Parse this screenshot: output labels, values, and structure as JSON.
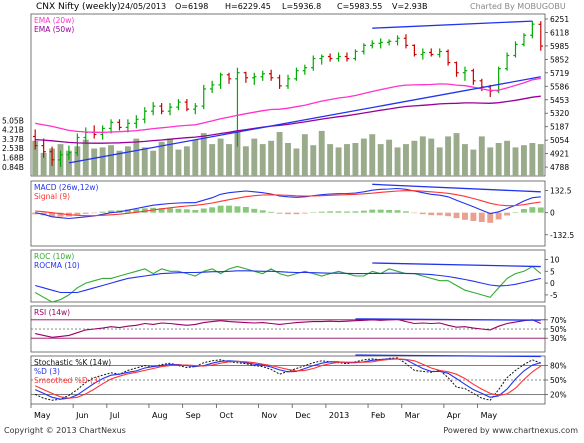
{
  "header": {
    "symbol": "CNX Nifty (weekly)",
    "date": "24/05/2013",
    "open": "O=6198",
    "high": "H=6229.45",
    "low": "L=5936.8",
    "close": "C=5983.55",
    "volume": "V=2.93B",
    "charted_by": "Charted By MOBUGOBU"
  },
  "footer": {
    "copyright": "Copyright © 2013 ChartNexus",
    "powered_by": "Powered by www.chartnexus.com"
  },
  "x_labels": [
    "May",
    "Jun",
    "Jul",
    "Aug",
    "Sep",
    "Oct",
    "Nov",
    "Dec",
    "2013",
    "Feb",
    "Mar",
    "Apr",
    "May"
  ],
  "colors": {
    "up": "#00aa00",
    "down": "#cc0000",
    "ema20": "#ff33cc",
    "ema50": "#990099",
    "trend": "#2233ee",
    "volume": "#9aab8c",
    "macd": "#2233ee",
    "signal": "#ff3333",
    "roc": "#33aa33",
    "rocma": "#2233ee",
    "rsi": "#990066",
    "stoch_k": "#111111",
    "stoch_d": "#2233ee",
    "stoch_smooth": "#ff3333"
  },
  "chart_data": [
    {
      "type": "candlestick",
      "name": "price",
      "legend": [
        "EMA (20w)",
        "EMA (50w)"
      ],
      "y_ticks": [
        4788,
        4921,
        5054,
        5187,
        5320,
        5453,
        5586,
        5719,
        5852,
        5985,
        6118,
        6251
      ],
      "ylim": [
        4700,
        6300
      ],
      "candles": [
        {
          "o": 5090,
          "h": 5160,
          "l": 4960,
          "c": 5000
        },
        {
          "o": 5000,
          "h": 5070,
          "l": 4880,
          "c": 4940
        },
        {
          "o": 4940,
          "h": 4990,
          "l": 4800,
          "c": 4860
        },
        {
          "o": 4860,
          "h": 4950,
          "l": 4790,
          "c": 4910
        },
        {
          "o": 4910,
          "h": 5000,
          "l": 4860,
          "c": 4930
        },
        {
          "o": 4930,
          "h": 5120,
          "l": 4900,
          "c": 5080
        },
        {
          "o": 5080,
          "h": 5180,
          "l": 5020,
          "c": 5130
        },
        {
          "o": 5130,
          "h": 5200,
          "l": 5070,
          "c": 5110
        },
        {
          "o": 5110,
          "h": 5200,
          "l": 5060,
          "c": 5170
        },
        {
          "o": 5170,
          "h": 5260,
          "l": 5120,
          "c": 5230
        },
        {
          "o": 5230,
          "h": 5260,
          "l": 5150,
          "c": 5180
        },
        {
          "o": 5180,
          "h": 5260,
          "l": 5130,
          "c": 5220
        },
        {
          "o": 5220,
          "h": 5300,
          "l": 5170,
          "c": 5260
        },
        {
          "o": 5260,
          "h": 5380,
          "l": 5220,
          "c": 5340
        },
        {
          "o": 5340,
          "h": 5430,
          "l": 5300,
          "c": 5390
        },
        {
          "o": 5390,
          "h": 5420,
          "l": 5310,
          "c": 5340
        },
        {
          "o": 5340,
          "h": 5420,
          "l": 5300,
          "c": 5380
        },
        {
          "o": 5380,
          "h": 5460,
          "l": 5350,
          "c": 5430
        },
        {
          "o": 5430,
          "h": 5460,
          "l": 5340,
          "c": 5360
        },
        {
          "o": 5360,
          "h": 5420,
          "l": 5310,
          "c": 5390
        },
        {
          "o": 5390,
          "h": 5600,
          "l": 5360,
          "c": 5560
        },
        {
          "o": 5560,
          "h": 5640,
          "l": 5520,
          "c": 5600
        },
        {
          "o": 5600,
          "h": 5720,
          "l": 5560,
          "c": 5700
        },
        {
          "o": 5700,
          "h": 5720,
          "l": 5610,
          "c": 5660
        },
        {
          "o": 5660,
          "h": 5770,
          "l": 4990,
          "c": 5720
        },
        {
          "o": 5720,
          "h": 5730,
          "l": 5620,
          "c": 5670
        },
        {
          "o": 5670,
          "h": 5720,
          "l": 5600,
          "c": 5680
        },
        {
          "o": 5680,
          "h": 5740,
          "l": 5640,
          "c": 5710
        },
        {
          "o": 5710,
          "h": 5750,
          "l": 5640,
          "c": 5670
        },
        {
          "o": 5670,
          "h": 5700,
          "l": 5560,
          "c": 5590
        },
        {
          "o": 5590,
          "h": 5700,
          "l": 5560,
          "c": 5660
        },
        {
          "o": 5660,
          "h": 5770,
          "l": 5640,
          "c": 5740
        },
        {
          "o": 5740,
          "h": 5800,
          "l": 5700,
          "c": 5770
        },
        {
          "o": 5770,
          "h": 5890,
          "l": 5740,
          "c": 5860
        },
        {
          "o": 5860,
          "h": 5900,
          "l": 5800,
          "c": 5880
        },
        {
          "o": 5880,
          "h": 5910,
          "l": 5830,
          "c": 5860
        },
        {
          "o": 5860,
          "h": 5920,
          "l": 5830,
          "c": 5880
        },
        {
          "o": 5880,
          "h": 5920,
          "l": 5830,
          "c": 5860
        },
        {
          "o": 5860,
          "h": 5950,
          "l": 5840,
          "c": 5930
        },
        {
          "o": 5930,
          "h": 6010,
          "l": 5900,
          "c": 5990
        },
        {
          "o": 5990,
          "h": 6040,
          "l": 5960,
          "c": 6010
        },
        {
          "o": 6010,
          "h": 6060,
          "l": 5960,
          "c": 6020
        },
        {
          "o": 6020,
          "h": 6050,
          "l": 5990,
          "c": 6030
        },
        {
          "o": 6030,
          "h": 6090,
          "l": 5990,
          "c": 6060
        },
        {
          "o": 6060,
          "h": 6100,
          "l": 5960,
          "c": 5990
        },
        {
          "o": 5990,
          "h": 6000,
          "l": 5880,
          "c": 5900
        },
        {
          "o": 5900,
          "h": 5960,
          "l": 5850,
          "c": 5920
        },
        {
          "o": 5920,
          "h": 5960,
          "l": 5880,
          "c": 5900
        },
        {
          "o": 5900,
          "h": 5960,
          "l": 5870,
          "c": 5930
        },
        {
          "o": 5930,
          "h": 5950,
          "l": 5790,
          "c": 5820
        },
        {
          "o": 5820,
          "h": 5830,
          "l": 5680,
          "c": 5720
        },
        {
          "o": 5720,
          "h": 5780,
          "l": 5640,
          "c": 5740
        },
        {
          "o": 5740,
          "h": 5760,
          "l": 5600,
          "c": 5640
        },
        {
          "o": 5640,
          "h": 5660,
          "l": 5540,
          "c": 5580
        },
        {
          "o": 5580,
          "h": 5600,
          "l": 5480,
          "c": 5540
        },
        {
          "o": 5540,
          "h": 5780,
          "l": 5520,
          "c": 5760
        },
        {
          "o": 5760,
          "h": 5920,
          "l": 5740,
          "c": 5890
        },
        {
          "o": 5890,
          "h": 6030,
          "l": 5870,
          "c": 6000
        },
        {
          "o": 6000,
          "h": 6110,
          "l": 5980,
          "c": 6090
        },
        {
          "o": 6090,
          "h": 6230,
          "l": 6060,
          "c": 6200
        },
        {
          "o": 6198,
          "h": 6229.45,
          "l": 5936.8,
          "c": 5983.55
        }
      ],
      "ema20": [
        5220,
        5205,
        5190,
        5170,
        5150,
        5140,
        5135,
        5132,
        5132,
        5135,
        5138,
        5142,
        5148,
        5157,
        5168,
        5176,
        5184,
        5194,
        5200,
        5206,
        5224,
        5244,
        5266,
        5282,
        5300,
        5315,
        5330,
        5345,
        5357,
        5360,
        5370,
        5384,
        5398,
        5420,
        5440,
        5455,
        5470,
        5480,
        5495,
        5515,
        5535,
        5553,
        5570,
        5588,
        5598,
        5600,
        5602,
        5604,
        5610,
        5608,
        5598,
        5592,
        5577,
        5560,
        5544,
        5548,
        5570,
        5595,
        5620,
        5650,
        5664
      ],
      "ema50": [
        5060,
        5055,
        5048,
        5040,
        5032,
        5027,
        5025,
        5024,
        5024,
        5026,
        5028,
        5032,
        5036,
        5042,
        5050,
        5056,
        5063,
        5071,
        5078,
        5084,
        5094,
        5106,
        5120,
        5132,
        5146,
        5158,
        5170,
        5182,
        5193,
        5200,
        5210,
        5222,
        5234,
        5248,
        5262,
        5274,
        5286,
        5296,
        5308,
        5322,
        5336,
        5350,
        5362,
        5376,
        5386,
        5392,
        5398,
        5404,
        5412,
        5416,
        5418,
        5422,
        5422,
        5420,
        5418,
        5424,
        5436,
        5448,
        5462,
        5478,
        5488
      ],
      "volume": [
        3.2,
        2.1,
        2.5,
        2.9,
        2.3,
        2.7,
        3.3,
        2.5,
        2.6,
        2.8,
        2.3,
        2.7,
        3.4,
        2.6,
        2.3,
        3.1,
        3.4,
        2.4,
        2.7,
        3.3,
        3.9,
        2.9,
        3.4,
        2.9,
        4.0,
        2.7,
        3.4,
        2.9,
        3.2,
        4.0,
        3.0,
        2.5,
        3.8,
        2.8,
        4.1,
        2.9,
        2.6,
        2.9,
        3.0,
        3.4,
        3.8,
        2.9,
        3.3,
        2.6,
        2.9,
        3.2,
        3.6,
        3.4,
        2.6,
        3.6,
        3.9,
        2.9,
        2.4,
        3.6,
        2.6,
        3.0,
        3.2,
        2.6,
        2.8,
        3.0,
        2.9
      ],
      "volume_ticks": [
        "5.05B",
        "4.21B",
        "3.37B",
        "2.53B",
        "1.68B",
        "0.84B"
      ],
      "trendlines": [
        {
          "from": [
            4,
            4830
          ],
          "to": [
            60,
            5680
          ]
        },
        {
          "from": [
            40,
            6160
          ],
          "to": [
            59,
            6230
          ]
        }
      ]
    },
    {
      "type": "line",
      "name": "macd",
      "legend": [
        "MACD (26w,12w)",
        "Signal (9)"
      ],
      "y_ticks": [
        132.5,
        0,
        -132.5
      ],
      "ylim": [
        -200,
        190
      ],
      "macd": [
        0,
        -10,
        -25,
        -30,
        -35,
        -30,
        -25,
        -20,
        -10,
        0,
        5,
        15,
        25,
        35,
        45,
        50,
        55,
        58,
        60,
        60,
        75,
        90,
        110,
        120,
        125,
        130,
        125,
        120,
        112,
        100,
        95,
        92,
        95,
        102,
        108,
        112,
        114,
        115,
        118,
        125,
        135,
        140,
        142,
        145,
        140,
        130,
        120,
        110,
        105,
        95,
        75,
        55,
        35,
        15,
        -5,
        5,
        25,
        45,
        70,
        90,
        95
      ],
      "signal": [
        10,
        6,
        0,
        -6,
        -12,
        -16,
        -18,
        -18,
        -16,
        -13,
        -9,
        -4,
        2,
        9,
        16,
        23,
        29,
        35,
        40,
        44,
        50,
        58,
        68,
        78,
        87,
        96,
        102,
        106,
        107,
        106,
        104,
        101,
        100,
        100,
        102,
        104,
        106,
        108,
        110,
        113,
        117,
        122,
        126,
        130,
        132,
        132,
        129,
        125,
        121,
        116,
        108,
        98,
        85,
        71,
        56,
        46,
        42,
        43,
        48,
        57,
        64
      ],
      "trendlines": [
        {
          "from": [
            40,
            170
          ],
          "to": [
            60,
            125
          ]
        }
      ]
    },
    {
      "type": "line",
      "name": "roc",
      "legend": [
        "ROC (10w)",
        "ROCMA (10)"
      ],
      "y_ticks": [
        10,
        5,
        0,
        -5
      ],
      "ylim": [
        -8,
        14
      ],
      "roc": [
        -4,
        -6,
        -8,
        -7,
        -5,
        -2,
        0,
        1,
        2,
        2,
        3,
        4,
        5,
        6,
        4,
        6,
        5,
        5,
        4,
        3,
        5,
        6,
        4,
        6,
        7,
        6,
        5,
        4,
        6,
        4,
        3,
        4,
        5,
        4,
        3,
        4,
        5,
        4,
        3,
        3,
        5,
        4,
        6,
        5,
        4,
        4,
        3,
        2,
        1,
        1,
        -1,
        -3,
        -4,
        -5,
        -6,
        -2,
        2,
        4,
        5,
        7,
        4
      ],
      "rocma": [
        -1,
        -2,
        -3,
        -4,
        -4,
        -4,
        -3,
        -2,
        -1,
        0,
        1,
        2,
        2.5,
        3,
        3.5,
        4,
        4.2,
        4.4,
        4.5,
        4.5,
        4.6,
        4.8,
        4.8,
        5,
        5.2,
        5.2,
        5.1,
        5,
        5,
        4.8,
        4.6,
        4.5,
        4.5,
        4.4,
        4.3,
        4.2,
        4.2,
        4.1,
        4,
        4,
        4.1,
        4.1,
        4.2,
        4.2,
        4.1,
        4,
        3.8,
        3.6,
        3.2,
        2.8,
        2.2,
        1.5,
        0.8,
        0,
        -0.8,
        -1.2,
        -1,
        -0.5,
        0.3,
        1.2,
        2
      ],
      "trendlines": [
        {
          "from": [
            40,
            8.5
          ],
          "to": [
            60,
            7
          ]
        }
      ]
    },
    {
      "type": "line",
      "name": "rsi",
      "legend": [
        "RSI (14w)"
      ],
      "y_ticks": [
        "70%",
        "50%",
        "30%"
      ],
      "ylim": [
        0,
        100
      ],
      "rsi": [
        40,
        36,
        32,
        34,
        36,
        42,
        48,
        50,
        52,
        55,
        53,
        56,
        58,
        62,
        60,
        63,
        62,
        60,
        58,
        60,
        64,
        66,
        68,
        66,
        65,
        64,
        63,
        64,
        62,
        60,
        62,
        64,
        65,
        66,
        66,
        67,
        66,
        67,
        68,
        69,
        70,
        69,
        70,
        71,
        66,
        62,
        63,
        62,
        63,
        58,
        54,
        55,
        52,
        50,
        48,
        56,
        62,
        65,
        68,
        70,
        62
      ],
      "trendlines": [
        {
          "from": [
            38,
            72
          ],
          "to": [
            60,
            69
          ]
        }
      ]
    },
    {
      "type": "line",
      "name": "stochastic",
      "legend": [
        "Stochastic %K (14w)",
        "%D (3)",
        "Smoothed %D (3)"
      ],
      "y_ticks": [
        "80%",
        "50%",
        "20%"
      ],
      "ylim": [
        0,
        100
      ],
      "k": [
        20,
        12,
        8,
        10,
        18,
        30,
        45,
        55,
        60,
        65,
        62,
        70,
        75,
        80,
        78,
        82,
        85,
        80,
        76,
        78,
        86,
        90,
        92,
        88,
        86,
        84,
        80,
        78,
        72,
        62,
        68,
        74,
        80,
        86,
        90,
        88,
        86,
        84,
        88,
        92,
        94,
        92,
        95,
        96,
        84,
        70,
        68,
        66,
        70,
        55,
        35,
        32,
        22,
        12,
        8,
        30,
        55,
        70,
        82,
        92,
        85
      ],
      "d": [
        30,
        22,
        14,
        10,
        12,
        19,
        31,
        43,
        53,
        60,
        62,
        66,
        69,
        75,
        78,
        80,
        82,
        82,
        80,
        78,
        80,
        85,
        89,
        90,
        89,
        86,
        83,
        81,
        77,
        71,
        67,
        68,
        74,
        80,
        85,
        88,
        88,
        86,
        86,
        88,
        91,
        93,
        94,
        94,
        92,
        83,
        74,
        68,
        68,
        64,
        53,
        41,
        30,
        22,
        14,
        17,
        31,
        52,
        69,
        81,
        86
      ],
      "smooth": [
        38,
        30,
        22,
        15,
        12,
        14,
        21,
        31,
        42,
        52,
        58,
        63,
        66,
        70,
        74,
        78,
        80,
        81,
        81,
        80,
        79,
        81,
        85,
        88,
        89,
        88,
        86,
        83,
        80,
        76,
        72,
        69,
        70,
        74,
        80,
        84,
        87,
        87,
        87,
        87,
        88,
        91,
        93,
        94,
        93,
        90,
        83,
        75,
        70,
        67,
        62,
        53,
        41,
        31,
        22,
        18,
        21,
        33,
        51,
        67,
        79
      ],
      "trendlines": [
        {
          "from": [
            38,
            102
          ],
          "to": [
            60,
            99
          ]
        }
      ]
    }
  ]
}
